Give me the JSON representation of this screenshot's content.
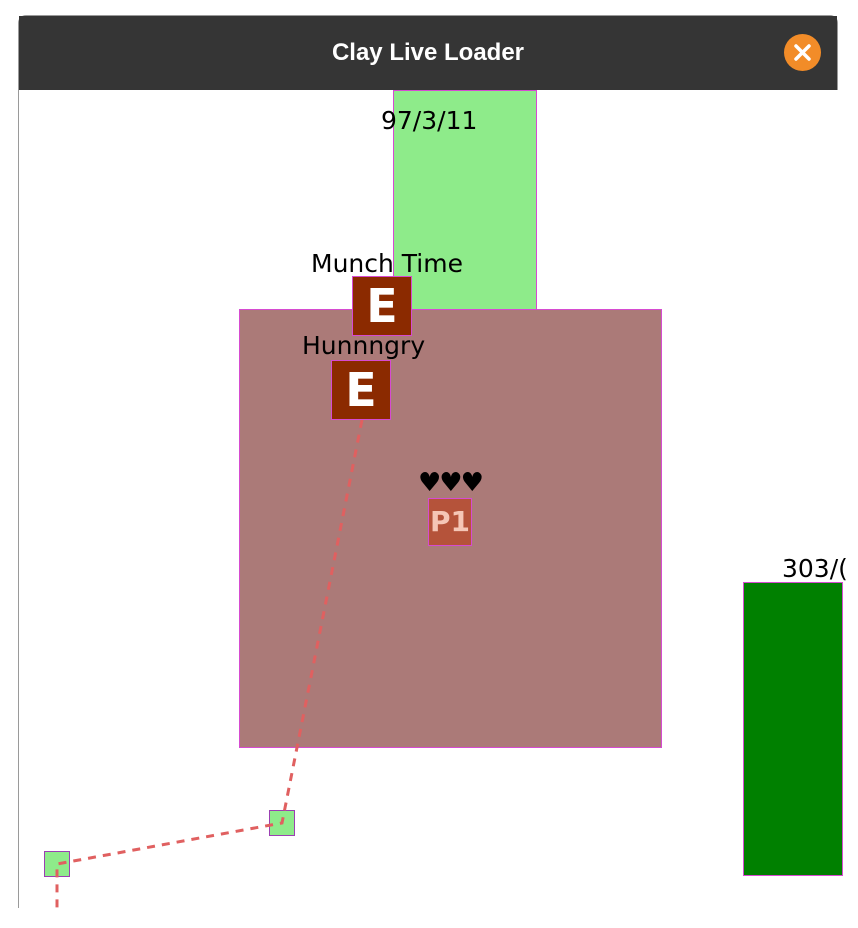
{
  "window": {
    "title": "Clay Live Loader",
    "close_icon": "close-icon",
    "accent_color": "#f28c28"
  },
  "scene": {
    "top_block": {
      "label": "97/3/11",
      "color": "#8eeb8a"
    },
    "right_block": {
      "label": "303/(",
      "color": "#008000"
    },
    "room": {
      "color": "#ab7a78"
    },
    "enemies": [
      {
        "glyph": "E",
        "name": "Munch Time"
      },
      {
        "glyph": "E",
        "name": "Hunnngry"
      }
    ],
    "player": {
      "glyph": "P1",
      "hearts": "♥♥♥"
    },
    "path_color": "#e06060"
  }
}
